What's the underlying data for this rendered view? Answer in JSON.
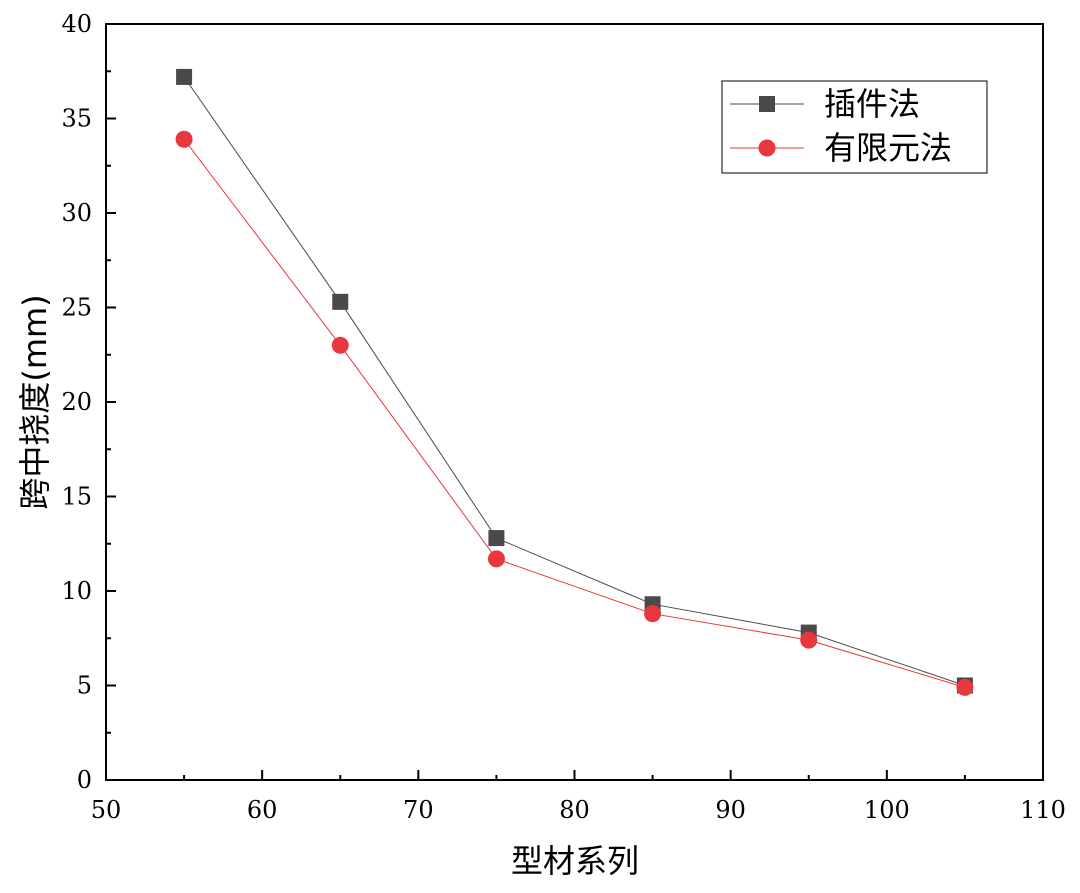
{
  "chart_data": {
    "type": "line",
    "xlabel": "型材系列",
    "ylabel": "跨中挠度(mm)",
    "xlim": [
      50,
      110
    ],
    "ylim": [
      0,
      40
    ],
    "x_ticks": [
      "50",
      "60",
      "70",
      "80",
      "90",
      "100",
      "110"
    ],
    "y_ticks": [
      "0",
      "5",
      "10",
      "15",
      "20",
      "25",
      "30",
      "35",
      "40"
    ],
    "x": [
      55,
      65,
      75,
      85,
      95,
      105
    ],
    "grid": false,
    "legend_position": "top-right",
    "series": [
      {
        "name": "插件法",
        "marker": "square",
        "color": "#4a4a4a",
        "values": [
          37.2,
          25.3,
          12.8,
          9.3,
          7.8,
          5.0
        ]
      },
      {
        "name": "有限元法",
        "marker": "circle",
        "color": "#e8383d",
        "values": [
          33.9,
          23.0,
          11.7,
          8.8,
          7.4,
          4.9
        ]
      }
    ]
  }
}
